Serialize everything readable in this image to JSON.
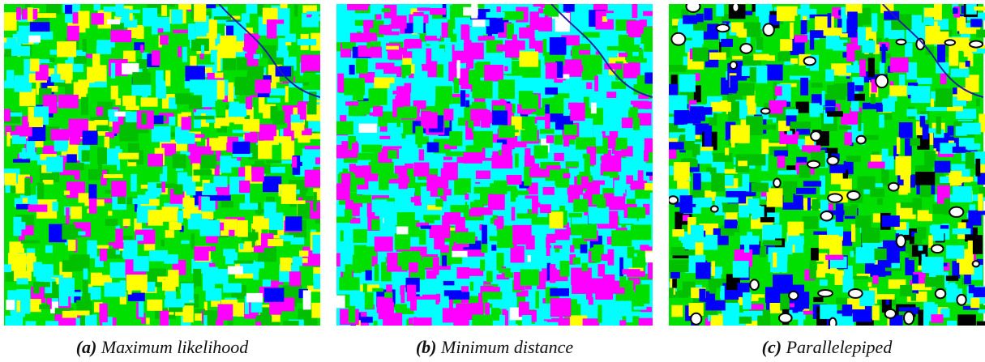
{
  "figure": {
    "panels": [
      {
        "label": "(a)",
        "caption": "Maximum likelihood"
      },
      {
        "label": "(b)",
        "caption": "Minimum distance"
      },
      {
        "label": "(c)",
        "caption": "Parallelepiped"
      }
    ]
  }
}
